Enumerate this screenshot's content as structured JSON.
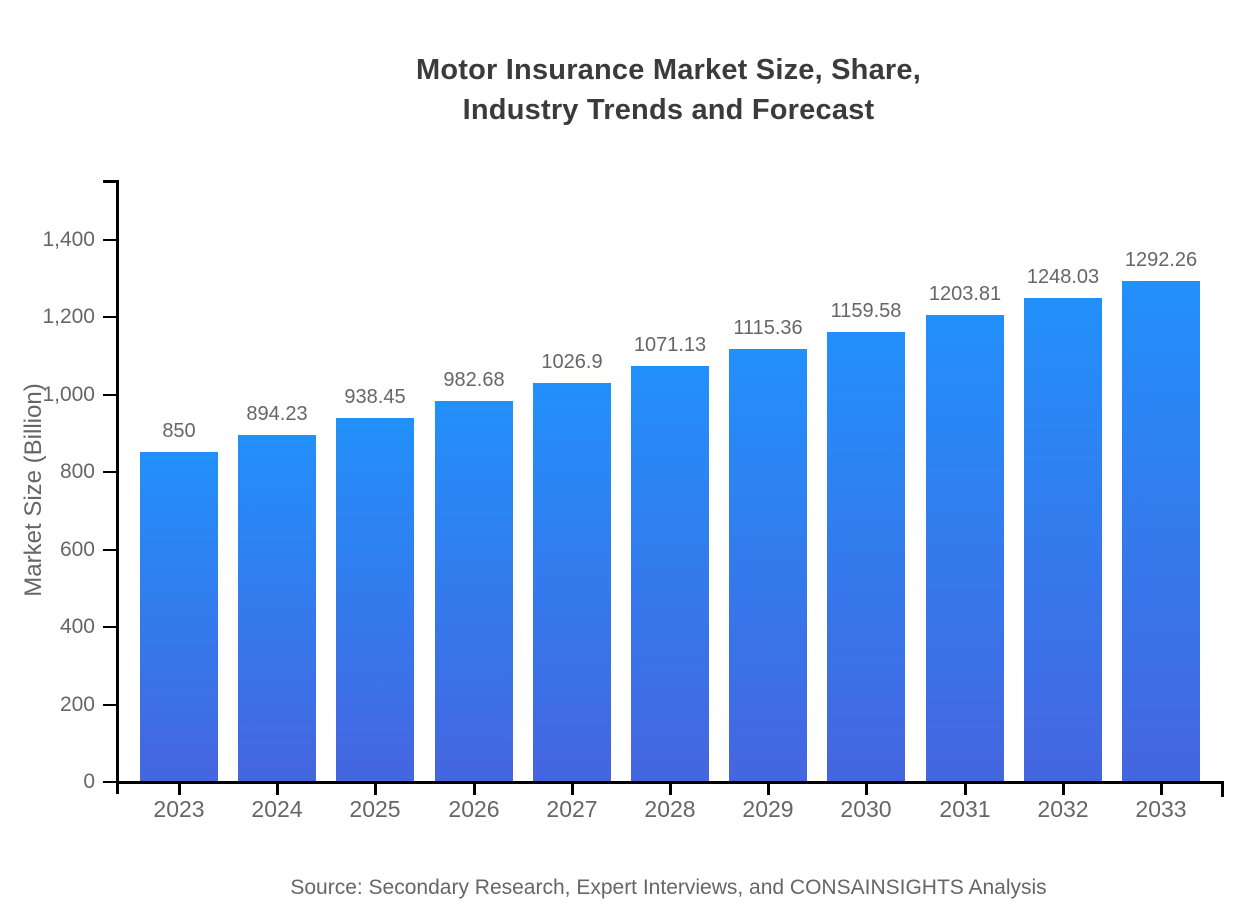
{
  "header": {
    "title_line1": "Motor Insurance Market Size, Share,",
    "title_line2": "Industry Trends and Forecast"
  },
  "chart_data": {
    "type": "bar",
    "title": "Motor Insurance Market Size, Share, Industry Trends and Forecast",
    "xlabel": "",
    "ylabel": "Market Size (Billion)",
    "categories": [
      "2023",
      "2024",
      "2025",
      "2026",
      "2027",
      "2028",
      "2029",
      "2030",
      "2031",
      "2032",
      "2033"
    ],
    "values": [
      850,
      894.23,
      938.45,
      982.68,
      1026.9,
      1071.13,
      1115.36,
      1159.58,
      1203.81,
      1248.03,
      1292.26
    ],
    "y_tick_values": [
      0,
      200,
      400,
      600,
      800,
      1000,
      1200,
      1400
    ],
    "y_tick_labels": [
      "0",
      "200",
      "400",
      "600",
      "800",
      "1,000",
      "1,200",
      "1,400"
    ],
    "ylim": [
      0,
      1553
    ],
    "grid": false,
    "legend": "none"
  },
  "footer": {
    "source": "Source: Secondary Research, Expert Interviews, and CONSAINSIGHTS Analysis"
  },
  "colors": {
    "bar_gradient_top": "#2290fa",
    "bar_gradient_bottom": "#4565e0",
    "axis": "#000000",
    "label_gray": "#666666",
    "title": "#3b3b3b"
  }
}
